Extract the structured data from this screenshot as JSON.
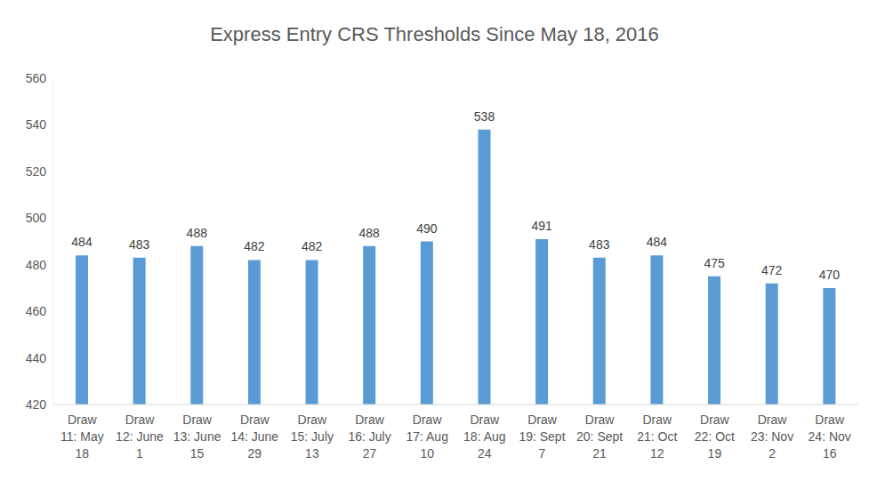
{
  "chart_data": {
    "type": "bar",
    "title": "Express Entry CRS Thresholds Since May 18, 2016",
    "categories": [
      "Draw 11: May 18",
      "Draw 12: June 1",
      "Draw 13: June 15",
      "Draw 14: June 29",
      "Draw 15: July 13",
      "Draw 16: July 27",
      "Draw 17: Aug 10",
      "Draw 18: Aug 24",
      "Draw 19: Sept 7",
      "Draw 20: Sept 21",
      "Draw 21: Oct 12",
      "Draw 22: Oct 19",
      "Draw 23: Nov 2",
      "Draw 24: Nov 16"
    ],
    "values": [
      484,
      483,
      488,
      482,
      482,
      488,
      490,
      538,
      491,
      483,
      484,
      475,
      472,
      470
    ],
    "color": "#5b9bd5",
    "ylim": [
      420,
      560
    ],
    "yticks": [
      420,
      440,
      460,
      480,
      500,
      520,
      540,
      560
    ],
    "grid": false,
    "data_labels": true
  }
}
